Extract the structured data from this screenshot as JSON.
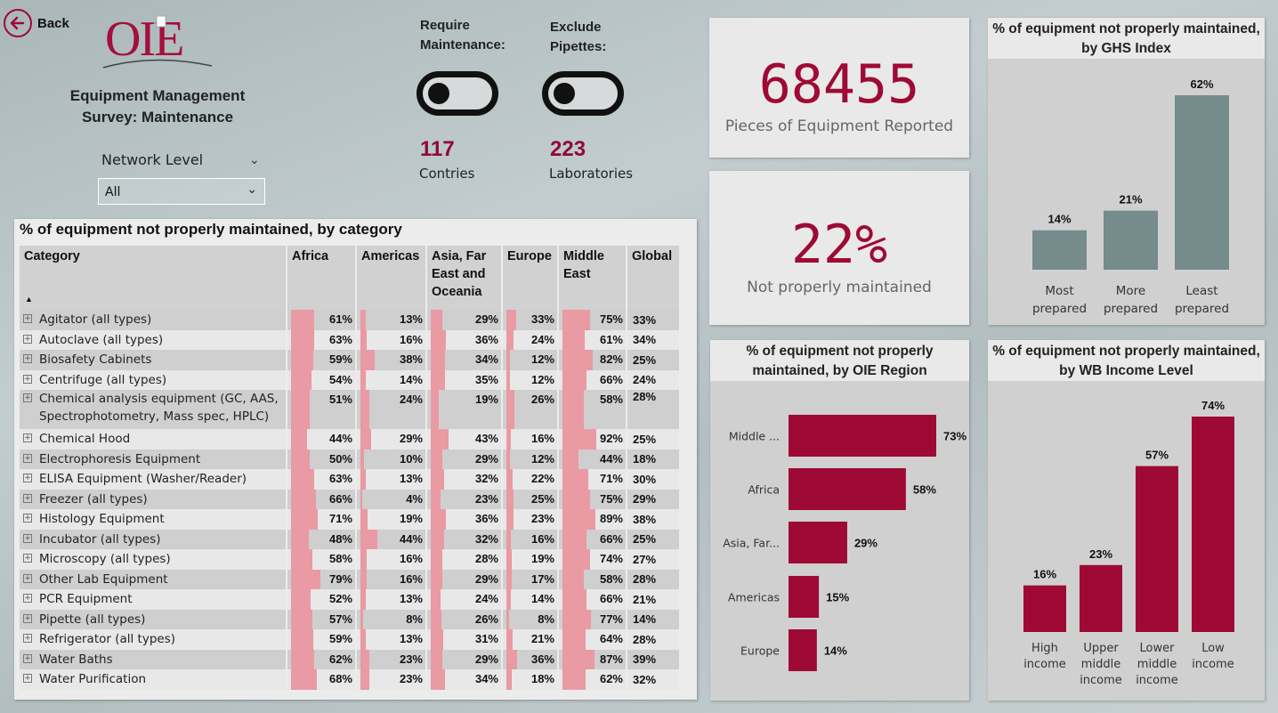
{
  "back": {
    "label": "Back"
  },
  "logo": {
    "text": "OIE"
  },
  "report_title": {
    "line1": "Equipment Management",
    "line2": "Survey: Maintenance"
  },
  "network_level": {
    "title": "Network Level",
    "selected": "All"
  },
  "toggles": {
    "maintenance": {
      "line1": "Require",
      "line2": "Maintenance:",
      "state": "off"
    },
    "pipettes": {
      "line1": "Exclude",
      "line2": "Pipettes:",
      "state": "off"
    }
  },
  "kpis": {
    "countries": {
      "value": "117",
      "label": "Contries"
    },
    "labs": {
      "value": "223",
      "label": "Laboratories"
    }
  },
  "cards": {
    "equipment": {
      "value": "68455",
      "label": "Pieces of Equipment Reported"
    },
    "not_maintained": {
      "value": "22%",
      "label": "Not properly maintained"
    }
  },
  "colors": {
    "accent": "#9e0a35",
    "bar_gray": "#758b8c",
    "table_bar": "#ea9aa3"
  },
  "table": {
    "title": "% of equipment not properly maintained, by category",
    "columns": [
      "Category",
      "Africa",
      "Americas",
      "Asia, Far East and Oceania",
      "Europe",
      "Middle East",
      "Global"
    ],
    "rows": [
      {
        "cat": "Agitator (all types)",
        "africa": "61%",
        "americas": "13%",
        "asia": "29%",
        "europe": "33%",
        "mideast": "75%",
        "global": "33%"
      },
      {
        "cat": "Autoclave (all types)",
        "africa": "63%",
        "americas": "16%",
        "asia": "36%",
        "europe": "24%",
        "mideast": "61%",
        "global": "34%"
      },
      {
        "cat": "Biosafety Cabinets",
        "africa": "59%",
        "americas": "38%",
        "asia": "34%",
        "europe": "12%",
        "mideast": "82%",
        "global": "25%"
      },
      {
        "cat": "Centrifuge (all types)",
        "africa": "54%",
        "americas": "14%",
        "asia": "35%",
        "europe": "12%",
        "mideast": "66%",
        "global": "24%"
      },
      {
        "cat": "Chemical analysis equipment (GC, AAS,",
        "cat2": "Spectrophotometry, Mass spec, HPLC)",
        "africa": "51%",
        "americas": "24%",
        "asia": "19%",
        "europe": "26%",
        "mideast": "58%",
        "global": "28%"
      },
      {
        "cat": "Chemical Hood",
        "africa": "44%",
        "americas": "29%",
        "asia": "43%",
        "europe": "16%",
        "mideast": "92%",
        "global": "25%"
      },
      {
        "cat": "Electrophoresis Equipment",
        "africa": "50%",
        "americas": "10%",
        "asia": "29%",
        "europe": "12%",
        "mideast": "44%",
        "global": "18%"
      },
      {
        "cat": "ELISA Equipment (Washer/Reader)",
        "africa": "63%",
        "americas": "13%",
        "asia": "32%",
        "europe": "22%",
        "mideast": "71%",
        "global": "30%"
      },
      {
        "cat": "Freezer (all types)",
        "africa": "66%",
        "americas": "4%",
        "asia": "23%",
        "europe": "25%",
        "mideast": "75%",
        "global": "29%"
      },
      {
        "cat": "Histology Equipment",
        "africa": "71%",
        "americas": "19%",
        "asia": "36%",
        "europe": "23%",
        "mideast": "89%",
        "global": "38%"
      },
      {
        "cat": "Incubator (all types)",
        "africa": "48%",
        "americas": "44%",
        "asia": "32%",
        "europe": "16%",
        "mideast": "66%",
        "global": "25%"
      },
      {
        "cat": "Microscopy (all types)",
        "africa": "58%",
        "americas": "16%",
        "asia": "28%",
        "europe": "19%",
        "mideast": "74%",
        "global": "27%"
      },
      {
        "cat": "Other Lab Equipment",
        "africa": "79%",
        "americas": "16%",
        "asia": "29%",
        "europe": "17%",
        "mideast": "58%",
        "global": "28%"
      },
      {
        "cat": "PCR Equipment",
        "africa": "52%",
        "americas": "13%",
        "asia": "24%",
        "europe": "14%",
        "mideast": "66%",
        "global": "21%"
      },
      {
        "cat": "Pipette (all types)",
        "africa": "57%",
        "americas": "8%",
        "asia": "26%",
        "europe": "8%",
        "mideast": "77%",
        "global": "14%"
      },
      {
        "cat": "Refrigerator (all types)",
        "africa": "59%",
        "americas": "13%",
        "asia": "31%",
        "europe": "21%",
        "mideast": "64%",
        "global": "28%"
      },
      {
        "cat": "Water Baths",
        "africa": "62%",
        "americas": "23%",
        "asia": "29%",
        "europe": "36%",
        "mideast": "87%",
        "global": "39%"
      },
      {
        "cat": "Water Purification",
        "africa": "68%",
        "americas": "23%",
        "asia": "34%",
        "europe": "18%",
        "mideast": "62%",
        "global": "32%"
      }
    ]
  },
  "chart_data": [
    {
      "type": "bar",
      "title": "% of equipment not properly maintained, by GHS Index",
      "categories": [
        "Most prepared",
        "More prepared",
        "Least prepared"
      ],
      "values": [
        14,
        21,
        62
      ],
      "labels": [
        "14%",
        "21%",
        "62%"
      ],
      "ylim": [
        0,
        62
      ],
      "color": "#758b8c"
    },
    {
      "type": "bar",
      "orientation": "horizontal",
      "title": "% of equipment not properly maintained, by OIE Region",
      "categories": [
        "Middle ...",
        "Africa",
        "Asia, Far...",
        "Americas",
        "Europe"
      ],
      "values": [
        73,
        58,
        29,
        15,
        14
      ],
      "labels": [
        "73%",
        "58%",
        "29%",
        "15%",
        "14%"
      ],
      "xlim": [
        0,
        73
      ],
      "color": "#9e0a35"
    },
    {
      "type": "bar",
      "title": "% of equipment not properly maintained, by WB Income Level",
      "categories": [
        "High income",
        "Upper middle income",
        "Lower middle income",
        "Low income"
      ],
      "values": [
        16,
        23,
        57,
        74
      ],
      "labels": [
        "16%",
        "23%",
        "57%",
        "74%"
      ],
      "ylim": [
        0,
        74
      ],
      "color": "#9e0a35"
    }
  ]
}
